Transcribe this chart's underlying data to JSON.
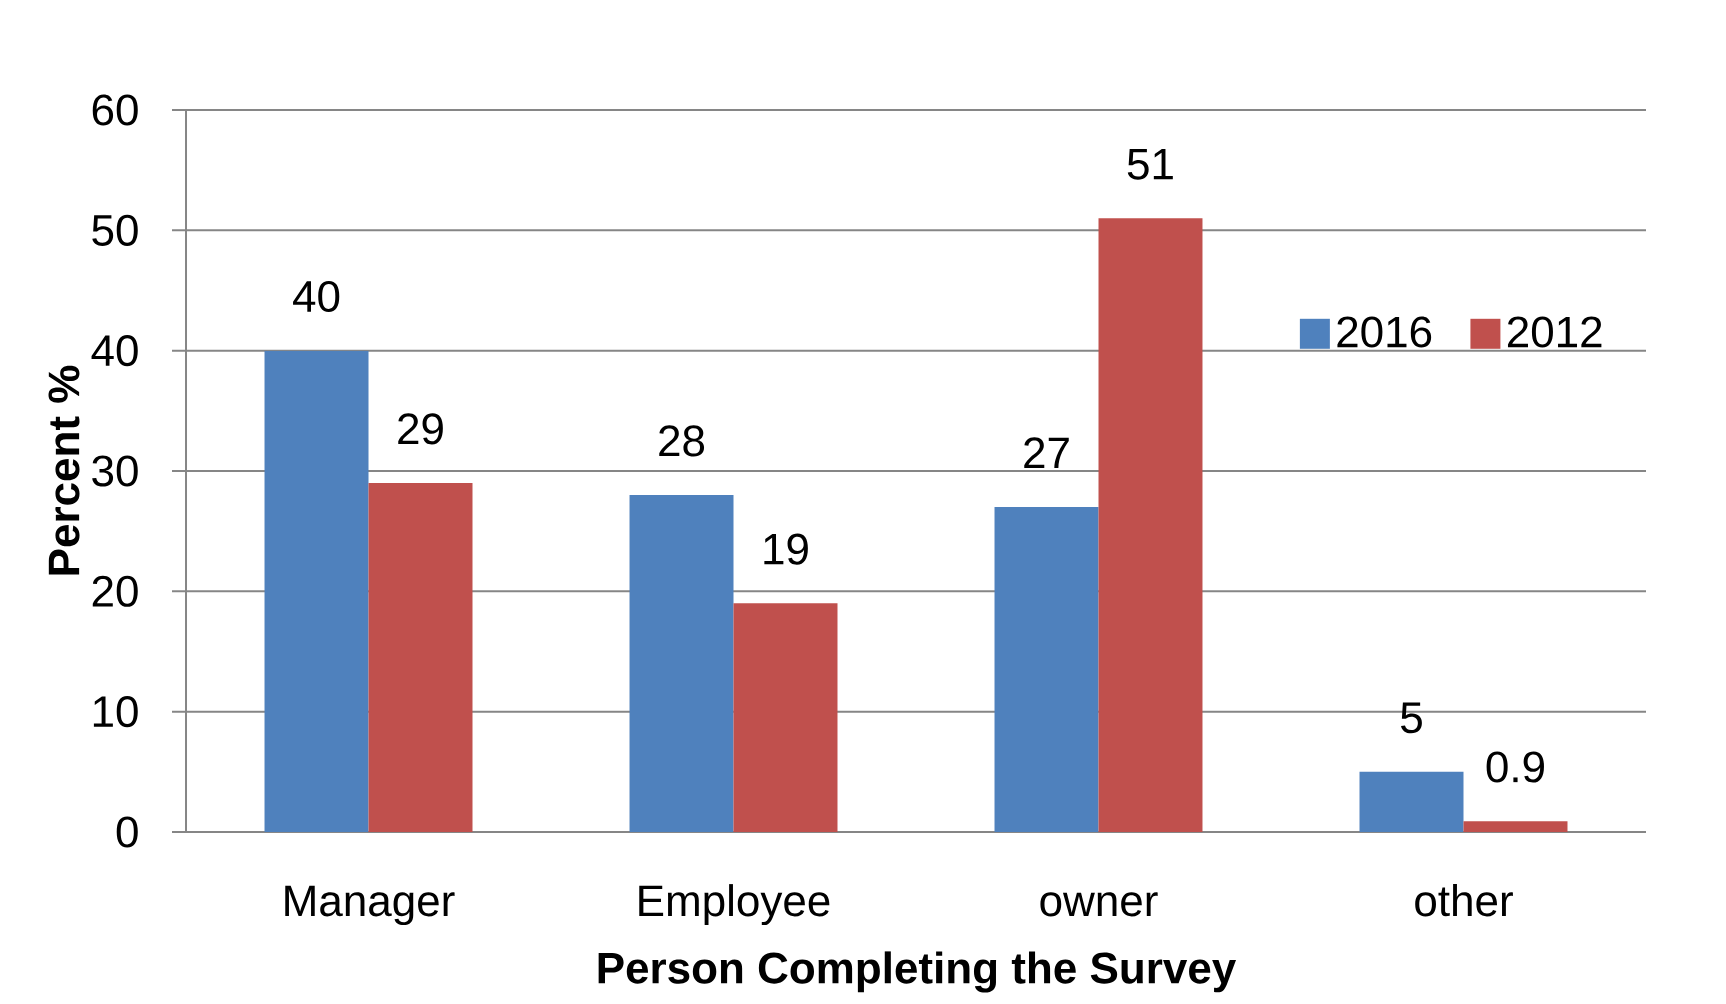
{
  "chart_data": {
    "type": "bar",
    "xlabel": "Person Completing the Survey",
    "ylabel": "Percent %",
    "categories": [
      "Manager",
      "Employee",
      "owner",
      "other"
    ],
    "series": [
      {
        "name": "2016",
        "color": "#4f81bd",
        "values": [
          40,
          28,
          27,
          5
        ]
      },
      {
        "name": "2012",
        "color": "#c0504d",
        "values": [
          29,
          19,
          51,
          0.9
        ]
      }
    ],
    "ylim": [
      0,
      60
    ],
    "yticks": [
      0,
      10,
      20,
      30,
      40,
      50,
      60
    ],
    "grid": "y",
    "legend": "right",
    "data_labels": true
  }
}
